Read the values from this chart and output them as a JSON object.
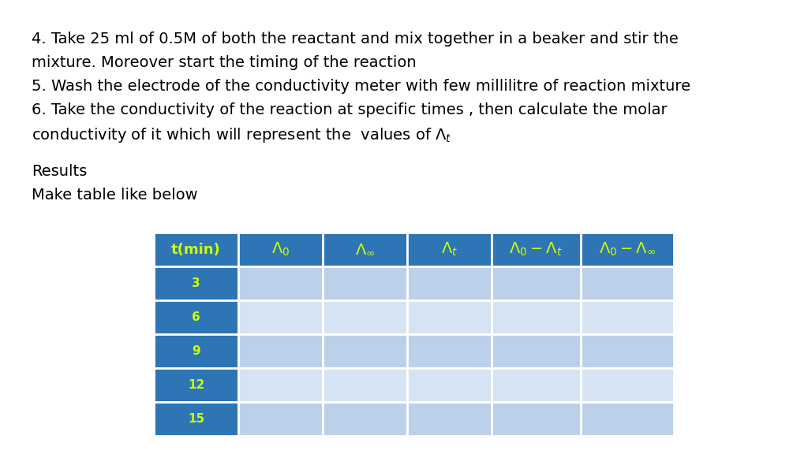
{
  "background_color": "#ffffff",
  "text_color": "#000000",
  "paragraph_lines": [
    "4. Take 25 ml of 0.5M of both the reactant and mix together in a beaker and stir the",
    "mixture. Moreover start the timing of the reaction",
    "5. Wash the electrode of the conductivity meter with few millilitre of reaction mixture",
    "6. Take the conductivity of the reaction at specific times , then calculate the molar"
  ],
  "last_line": "conductivity of it which will represent the  values of ",
  "results_label": "Results",
  "make_table_label": "Make table like below",
  "table_header_bg": "#2E75B6",
  "table_header_text_color": "#CCFF00",
  "table_row_colors": [
    "#BDD0E9",
    "#D6E3F2",
    "#BDD0E9",
    "#D6E3F2",
    "#BDD0E9"
  ],
  "table_time_col_bg": "#2E75B6",
  "table_time_col_text": "#CCFF00",
  "row_values": [
    "3",
    "6",
    "9",
    "12",
    "15"
  ],
  "font_size_text": 14,
  "font_size_header": 13,
  "font_size_row": 11
}
